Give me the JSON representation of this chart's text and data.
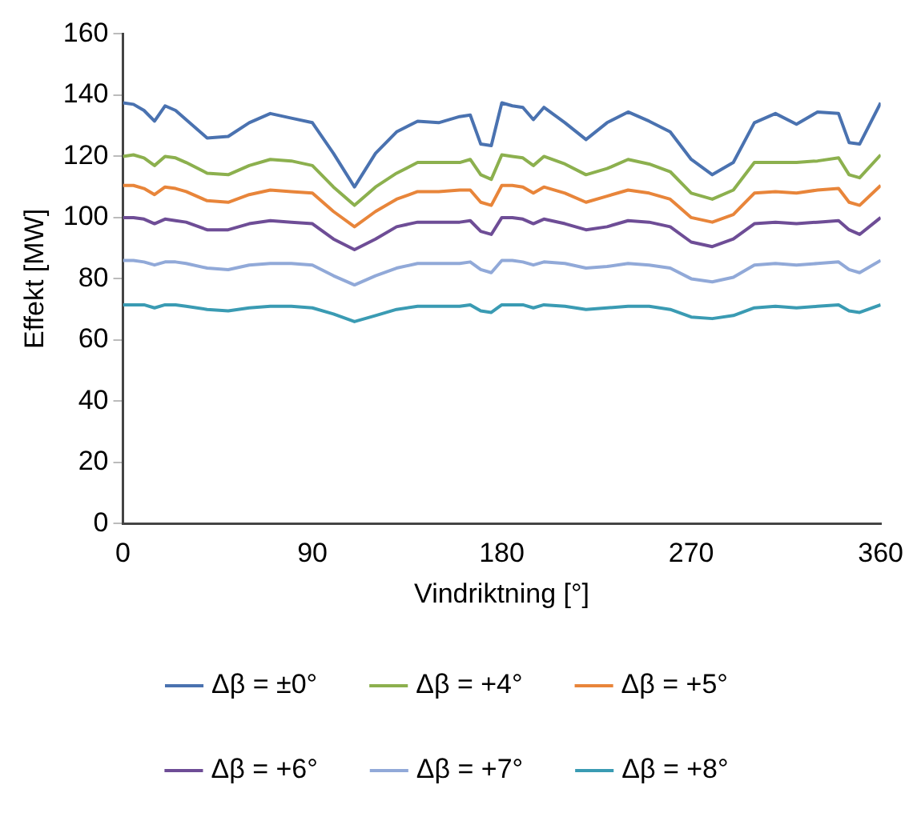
{
  "chart_data": {
    "type": "line",
    "xlabel": "Vindriktning [°]",
    "ylabel": "Effekt [MW]",
    "x": [
      0,
      5,
      10,
      15,
      20,
      25,
      30,
      40,
      50,
      60,
      70,
      80,
      90,
      100,
      110,
      120,
      130,
      140,
      150,
      160,
      165,
      170,
      175,
      180,
      185,
      190,
      195,
      200,
      210,
      220,
      230,
      240,
      250,
      260,
      270,
      280,
      290,
      300,
      310,
      320,
      330,
      340,
      345,
      350,
      360
    ],
    "xlim": [
      0,
      360
    ],
    "xticks": [
      0,
      90,
      180,
      270,
      360
    ],
    "ylim": [
      0,
      160
    ],
    "yticks": [
      0,
      20,
      40,
      60,
      80,
      100,
      120,
      140,
      160
    ],
    "grid": false,
    "legend": "bottom",
    "marker": "none",
    "line_style": "solid",
    "series": [
      {
        "name": "Δβ = ±0°",
        "color": "#4a72b0",
        "values": [
          137.5,
          137,
          135,
          131.5,
          136.5,
          135,
          132,
          126,
          126.5,
          131,
          134,
          132.5,
          131,
          121,
          110,
          121,
          128,
          131.5,
          131,
          133,
          133.5,
          124,
          123.5,
          137.5,
          136.5,
          136,
          132,
          136,
          131,
          125.5,
          131,
          134.5,
          131.5,
          128,
          119,
          114,
          118,
          131,
          134,
          130.5,
          134.5,
          134,
          124.5,
          124,
          137.5
        ]
      },
      {
        "name": "Δβ = +4°",
        "color": "#8cb04e",
        "values": [
          120,
          120.5,
          119.5,
          117,
          120,
          119.5,
          118,
          114.5,
          114,
          117,
          119,
          118.5,
          117,
          110,
          104,
          110,
          114.5,
          118,
          118,
          118,
          119,
          114,
          112.5,
          120.5,
          120,
          119.5,
          117,
          120,
          117.5,
          114,
          116,
          119,
          117.5,
          115,
          108,
          106,
          109,
          118,
          118,
          118,
          118.5,
          119.5,
          114,
          113,
          120.5
        ]
      },
      {
        "name": "Δβ = +5°",
        "color": "#e8853a",
        "values": [
          110.5,
          110.5,
          109.5,
          107.5,
          110,
          109.5,
          108.5,
          105.5,
          105,
          107.5,
          109,
          108.5,
          108,
          102,
          97,
          102,
          106,
          108.5,
          108.5,
          109,
          109,
          105,
          104,
          110.5,
          110.5,
          110,
          108,
          110,
          108,
          105,
          107,
          109,
          108,
          106,
          100,
          98.5,
          101,
          108,
          108.5,
          108,
          109,
          109.5,
          105,
          104,
          110.5
        ]
      },
      {
        "name": "Δβ = +6°",
        "color": "#6e4d96",
        "values": [
          100,
          100,
          99.5,
          98,
          99.5,
          99,
          98.5,
          96,
          96,
          98,
          99,
          98.5,
          98,
          93,
          89.5,
          93,
          97,
          98.5,
          98.5,
          98.5,
          99,
          95.5,
          94.5,
          100,
          100,
          99.5,
          98,
          99.5,
          98,
          96,
          97,
          99,
          98.5,
          97,
          92,
          90.5,
          93,
          98,
          98.5,
          98,
          98.5,
          99,
          96,
          94.5,
          100
        ]
      },
      {
        "name": "Δβ = +7°",
        "color": "#91a9d8",
        "values": [
          86,
          86,
          85.5,
          84.5,
          85.5,
          85.5,
          85,
          83.5,
          83,
          84.5,
          85,
          85,
          84.5,
          81,
          78,
          81,
          83.5,
          85,
          85,
          85,
          85.5,
          83,
          82,
          86,
          86,
          85.5,
          84.5,
          85.5,
          85,
          83.5,
          84,
          85,
          84.5,
          83.5,
          80,
          79,
          80.5,
          84.5,
          85,
          84.5,
          85,
          85.5,
          83,
          82,
          86
        ]
      },
      {
        "name": "Δβ = +8°",
        "color": "#3a9bb3",
        "values": [
          71.5,
          71.5,
          71.5,
          70.5,
          71.5,
          71.5,
          71,
          70,
          69.5,
          70.5,
          71,
          71,
          70.5,
          68.5,
          66,
          68,
          70,
          71,
          71,
          71,
          71.5,
          69.5,
          69,
          71.5,
          71.5,
          71.5,
          70.5,
          71.5,
          71,
          70,
          70.5,
          71,
          71,
          70,
          67.5,
          67,
          68,
          70.5,
          71,
          70.5,
          71,
          71.5,
          69.5,
          69,
          71.5
        ]
      }
    ]
  }
}
